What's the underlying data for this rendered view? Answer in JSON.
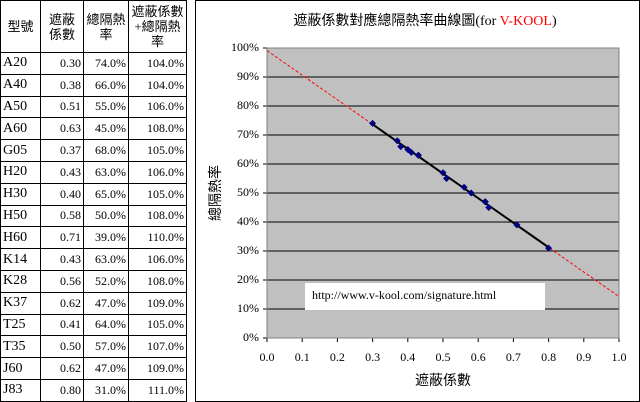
{
  "table": {
    "header": [
      "型號",
      "遮蔽係數",
      "總隔熱率",
      "遮蔽係數+總隔熱率"
    ],
    "rows": [
      [
        "A20",
        "0.30",
        "74.0%",
        "104.0%"
      ],
      [
        "A40",
        "0.38",
        "66.0%",
        "104.0%"
      ],
      [
        "A50",
        "0.51",
        "55.0%",
        "106.0%"
      ],
      [
        "A60",
        "0.63",
        "45.0%",
        "108.0%"
      ],
      [
        "G05",
        "0.37",
        "68.0%",
        "105.0%"
      ],
      [
        "H20",
        "0.43",
        "63.0%",
        "106.0%"
      ],
      [
        "H30",
        "0.40",
        "65.0%",
        "105.0%"
      ],
      [
        "H50",
        "0.58",
        "50.0%",
        "108.0%"
      ],
      [
        "H60",
        "0.71",
        "39.0%",
        "110.0%"
      ],
      [
        "K14",
        "0.43",
        "63.0%",
        "106.0%"
      ],
      [
        "K28",
        "0.56",
        "52.0%",
        "108.0%"
      ],
      [
        "K37",
        "0.62",
        "47.0%",
        "109.0%"
      ],
      [
        "T25",
        "0.41",
        "64.0%",
        "105.0%"
      ],
      [
        "T35",
        "0.50",
        "57.0%",
        "107.0%"
      ],
      [
        "J60",
        "0.62",
        "47.0%",
        "109.0%"
      ],
      [
        "J83",
        "0.80",
        "31.0%",
        "111.0%"
      ]
    ]
  },
  "chart_data": {
    "type": "scatter",
    "title": [
      "遮蔽係數對應總隔熱率曲線圖(for ",
      "V-KOOL",
      ")"
    ],
    "title_highlight_color": "#ff0000",
    "x_label": "遮蔽係數",
    "y_label": "總隔熱率",
    "annotation": "http://www.v-kool.com/signature.html",
    "x": [
      0.3,
      0.38,
      0.51,
      0.63,
      0.37,
      0.43,
      0.4,
      0.58,
      0.71,
      0.43,
      0.56,
      0.62,
      0.41,
      0.5,
      0.62,
      0.8
    ],
    "values": [
      74,
      66,
      55,
      45,
      68,
      63,
      65,
      50,
      39,
      63,
      52,
      47,
      64,
      57,
      47,
      31
    ],
    "color": "#000080",
    "trendline_color": "#ff0000",
    "xlim": [
      0,
      1
    ],
    "ylim": [
      0,
      100
    ],
    "xticks": [
      {
        "value": 0,
        "label": "0.0"
      },
      0.1,
      0.2,
      0.3,
      0.4,
      0.5,
      0.6,
      0.7,
      0.8,
      0.9,
      {
        "value": 1,
        "label": "1.0"
      }
    ],
    "yticks": [
      {
        "value": 0,
        "label": "0%"
      },
      {
        "value": 10,
        "label": "10%"
      },
      {
        "value": 20,
        "label": "20%"
      },
      {
        "value": 30,
        "label": "30%"
      },
      {
        "value": 40,
        "label": "40%"
      },
      {
        "value": 50,
        "label": "50%"
      },
      {
        "value": 60,
        "label": "60%"
      },
      {
        "value": 70,
        "label": "70%"
      },
      {
        "value": 80,
        "label": "80%"
      },
      {
        "value": 90,
        "label": "90%"
      },
      {
        "value": 100,
        "label": "100%"
      }
    ],
    "grid": true
  }
}
